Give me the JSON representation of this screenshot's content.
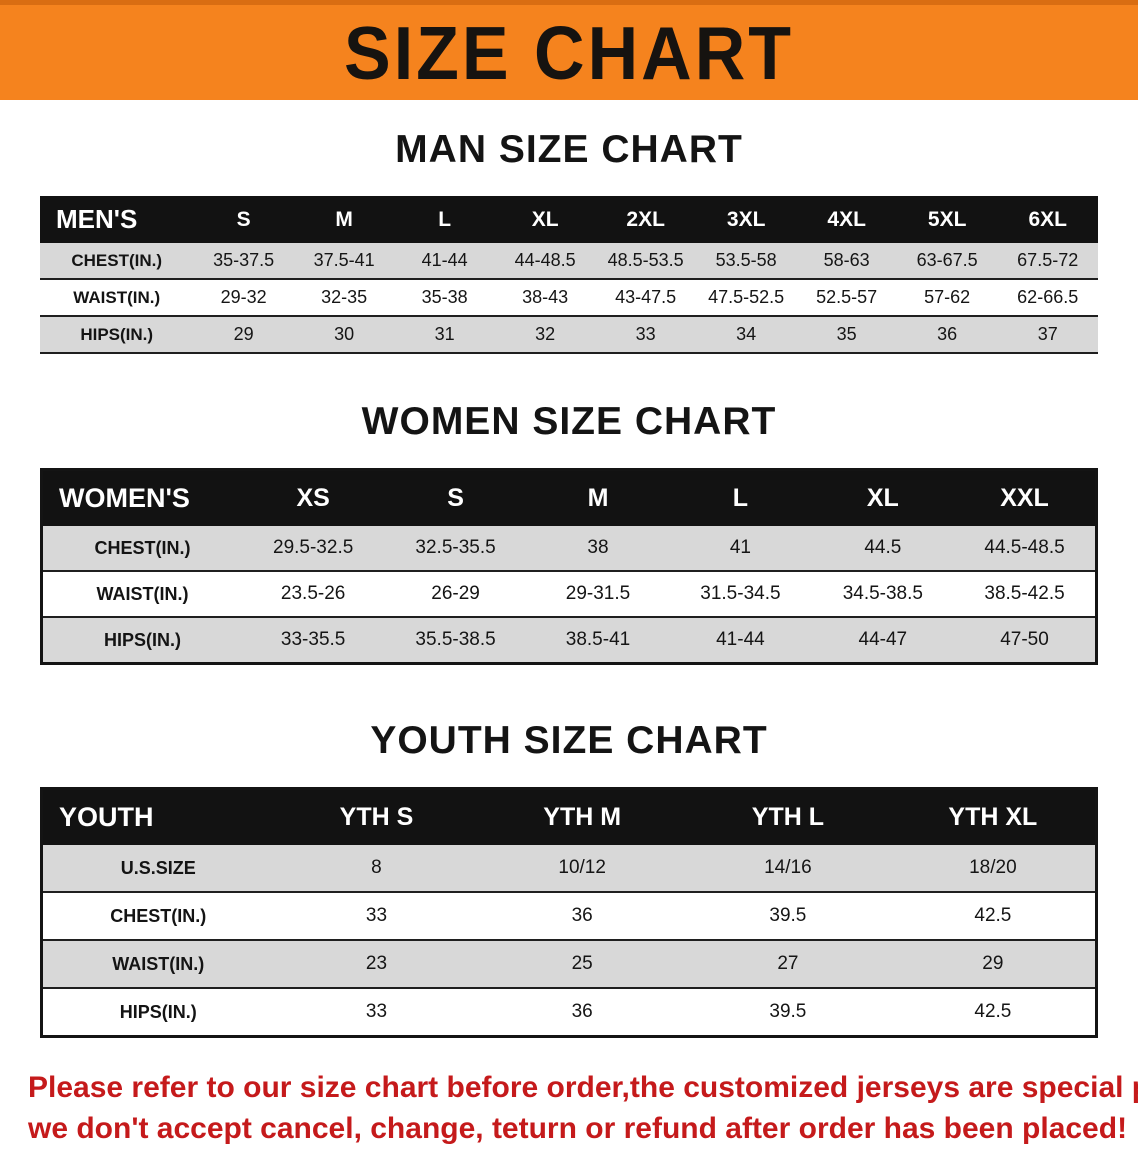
{
  "banner": {
    "title": "SIZE CHART"
  },
  "colors": {
    "banner_bg": "#f5831e",
    "banner_edge": "#d96d12",
    "header_bg": "#121212",
    "stripe_gray": "#d8d8d8",
    "row_border": "#1f1f1f",
    "disclaimer_red": "#c51a1b"
  },
  "men": {
    "heading": "MAN SIZE CHART",
    "table": {
      "header": [
        "MEN'S",
        "S",
        "M",
        "L",
        "XL",
        "2XL",
        "3XL",
        "4XL",
        "5XL",
        "6XL"
      ],
      "rows": [
        [
          "CHEST(IN.)",
          "35-37.5",
          "37.5-41",
          "41-44",
          "44-48.5",
          "48.5-53.5",
          "53.5-58",
          "58-63",
          "63-67.5",
          "67.5-72"
        ],
        [
          "WAIST(IN.)",
          "29-32",
          "32-35",
          "35-38",
          "38-43",
          "43-47.5",
          "47.5-52.5",
          "52.5-57",
          "57-62",
          "62-66.5"
        ],
        [
          "HIPS(IN.)",
          "29",
          "30",
          "31",
          "32",
          "33",
          "34",
          "35",
          "36",
          "37"
        ]
      ]
    }
  },
  "women": {
    "heading": "WOMEN SIZE CHART",
    "table": {
      "header": [
        "WOMEN'S",
        "XS",
        "S",
        "M",
        "L",
        "XL",
        "XXL"
      ],
      "rows": [
        [
          "CHEST(IN.)",
          "29.5-32.5",
          "32.5-35.5",
          "38",
          "41",
          "44.5",
          "44.5-48.5"
        ],
        [
          "WAIST(IN.)",
          "23.5-26",
          "26-29",
          "29-31.5",
          "31.5-34.5",
          "34.5-38.5",
          "38.5-42.5"
        ],
        [
          "HIPS(IN.)",
          "33-35.5",
          "35.5-38.5",
          "38.5-41",
          "41-44",
          "44-47",
          "47-50"
        ]
      ]
    }
  },
  "youth": {
    "heading": "YOUTH SIZE CHART",
    "table": {
      "header": [
        "YOUTH",
        "YTH S",
        "YTH M",
        "YTH L",
        "YTH XL"
      ],
      "rows": [
        [
          "U.S.SIZE",
          "8",
          "10/12",
          "14/16",
          "18/20"
        ],
        [
          "CHEST(IN.)",
          "33",
          "36",
          "39.5",
          "42.5"
        ],
        [
          "WAIST(IN.)",
          "23",
          "25",
          "27",
          "29"
        ],
        [
          "HIPS(IN.)",
          "33",
          "36",
          "39.5",
          "42.5"
        ]
      ]
    }
  },
  "disclaimer": {
    "line1": "Please refer to our size chart before order,the customized jerseys are special products,",
    "line2": "we don't accept cancel, change, teturn or refund after order has been placed!"
  }
}
